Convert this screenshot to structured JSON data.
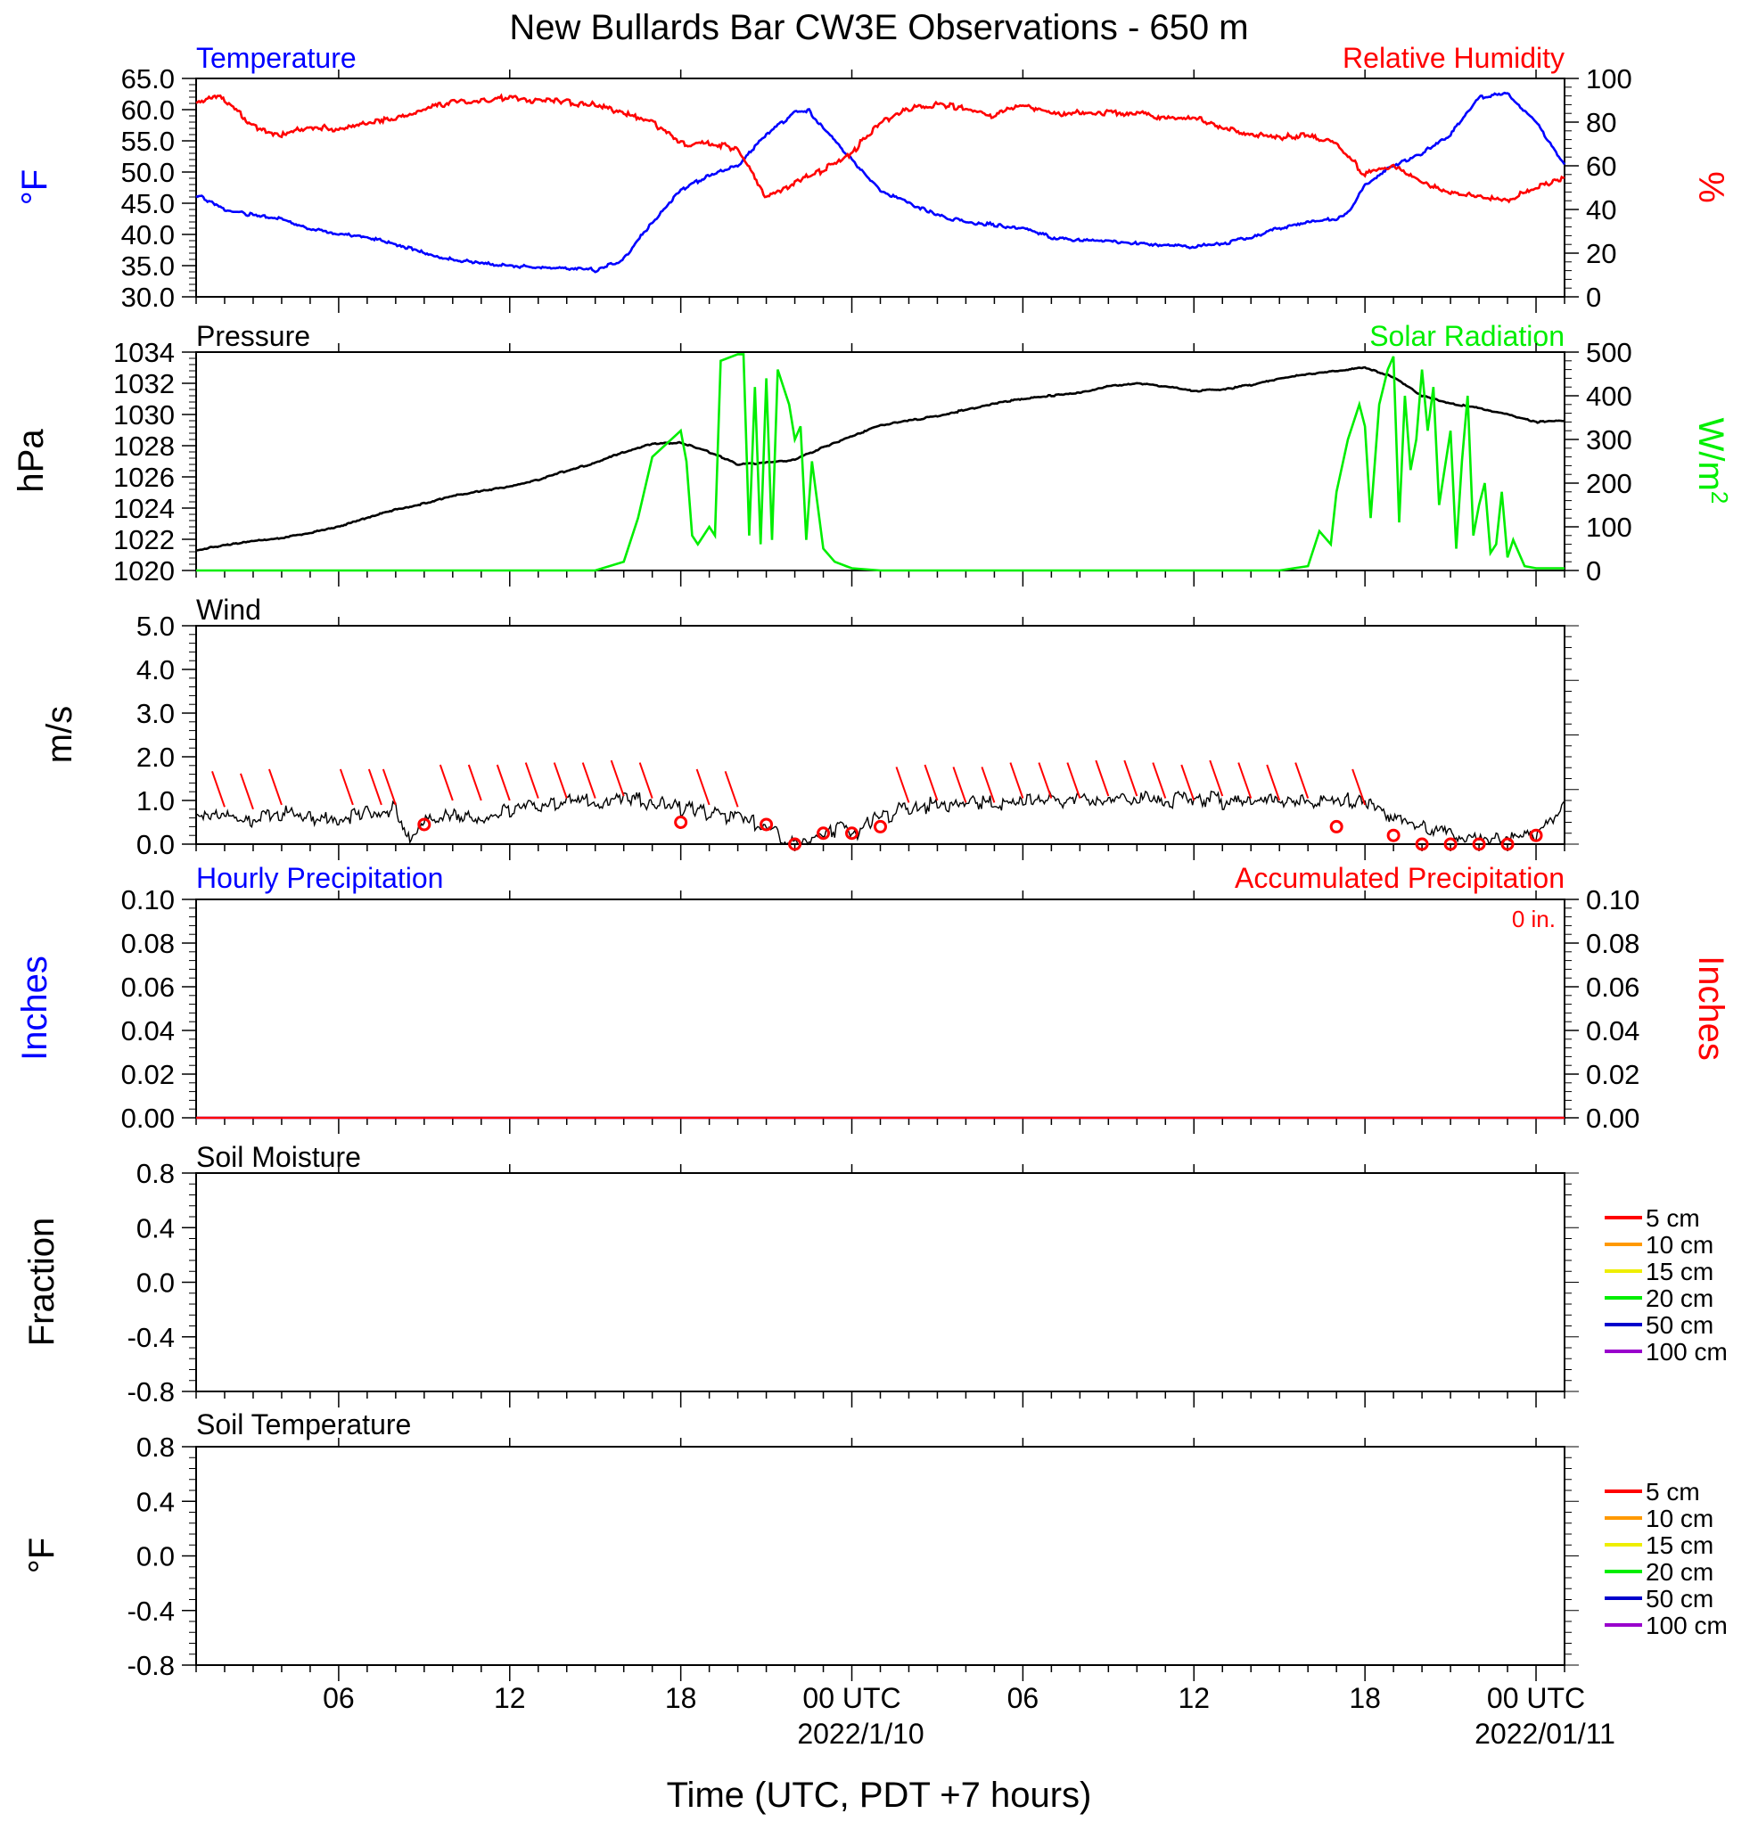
{
  "title": "New Bullards Bar CW3E Observations - 650 m",
  "colors": {
    "temperature": "#0000ff",
    "humidity": "#ff0000",
    "pressure": "#000000",
    "solar": "#00ee00",
    "wind": "#000000",
    "barb": "#ff0000",
    "hourly_precip": "#0000ff",
    "accum_precip": "#ff0000"
  },
  "x_axis": {
    "label": "Time (UTC, PDT +7 hours)",
    "range_hours": [
      0,
      48
    ],
    "ticks": [
      {
        "h": 5,
        "label": "06",
        "sub": ""
      },
      {
        "h": 11,
        "label": "12",
        "sub": ""
      },
      {
        "h": 17,
        "label": "18",
        "sub": ""
      },
      {
        "h": 23,
        "label": "00 UTC",
        "sub": "2022/1/10"
      },
      {
        "h": 29,
        "label": "06",
        "sub": ""
      },
      {
        "h": 35,
        "label": "12",
        "sub": ""
      },
      {
        "h": 41,
        "label": "18",
        "sub": ""
      },
      {
        "h": 47,
        "label": "00 UTC",
        "sub": "2022/01/11"
      }
    ]
  },
  "chart_data": [
    {
      "type": "line",
      "panel": "temperature-humidity",
      "title_left": "Temperature",
      "title_right": "Relative Humidity",
      "ylabel_left": "°F",
      "ylabel_right": "%",
      "ylim_left": [
        30,
        65
      ],
      "ylim_right": [
        0,
        100
      ],
      "yticks_left": [
        "65.0",
        "60.0",
        "55.0",
        "50.0",
        "45.0",
        "40.0",
        "35.0",
        "30.0"
      ],
      "yticks_right": [
        "100",
        "80",
        "60",
        "40",
        "20",
        "0"
      ],
      "series": [
        {
          "name": "Temperature",
          "axis": "left",
          "x": [
            0,
            1,
            2,
            3,
            4,
            5,
            6,
            7,
            8,
            9,
            10,
            11,
            12,
            13,
            14,
            15,
            16,
            17,
            18,
            19,
            20,
            21,
            21.5,
            22,
            23,
            24,
            25,
            26,
            27,
            28,
            29,
            30,
            31,
            32,
            33,
            34,
            35,
            36,
            37,
            38,
            39,
            40,
            40.5,
            41,
            42,
            43,
            44,
            45,
            46,
            47,
            48
          ],
          "y": [
            46.5,
            44,
            43,
            42.5,
            41,
            40,
            39.5,
            38.5,
            37,
            36,
            35.5,
            35,
            34.8,
            34.5,
            34.3,
            36,
            42,
            47,
            49.5,
            51,
            56,
            59.5,
            59.8,
            57,
            52,
            47,
            45,
            43,
            42,
            41.5,
            41,
            39.5,
            39,
            39,
            38.5,
            38.3,
            38,
            38.5,
            39.5,
            41,
            42,
            42.5,
            44,
            48,
            51,
            53,
            56,
            62,
            62.5,
            58,
            51
          ]
        },
        {
          "name": "Relative Humidity",
          "axis": "right",
          "x": [
            0,
            0.5,
            1,
            2,
            3,
            4,
            5,
            6,
            7,
            8,
            9,
            10,
            11,
            12,
            13,
            14,
            15,
            16,
            17,
            18,
            19,
            20,
            21,
            22,
            23,
            24,
            25,
            26,
            27,
            28,
            29,
            30,
            31,
            32,
            33,
            34,
            35,
            36,
            37,
            38,
            39,
            40,
            41,
            42,
            43,
            44,
            45,
            46,
            47,
            48
          ],
          "y": [
            88,
            92,
            90,
            78,
            74,
            78,
            77,
            80,
            82,
            86,
            89,
            90,
            91,
            90,
            89,
            88,
            84,
            80,
            70,
            70,
            68,
            45,
            52,
            58,
            66,
            80,
            86,
            88,
            86,
            83,
            88,
            84,
            84,
            84,
            84,
            82,
            82,
            78,
            74,
            73,
            74,
            70,
            56,
            60,
            52,
            47,
            46,
            44,
            50,
            55
          ]
        }
      ]
    },
    {
      "type": "line",
      "panel": "pressure-solar",
      "title_left": "Pressure",
      "title_right": "Solar Radiation",
      "ylabel_left": "hPa",
      "ylabel_right": "W/m2",
      "ylim_left": [
        1020,
        1034
      ],
      "ylim_right": [
        0,
        500
      ],
      "yticks_left": [
        "1034",
        "1032",
        "1030",
        "1028",
        "1026",
        "1024",
        "1022",
        "1020"
      ],
      "yticks_right": [
        "500",
        "400",
        "300",
        "200",
        "100",
        "0"
      ],
      "series": [
        {
          "name": "Pressure",
          "axis": "left",
          "x": [
            0,
            1,
            2,
            3,
            4,
            5,
            6,
            7,
            8,
            9,
            10,
            11,
            12,
            13,
            14,
            15,
            16,
            17,
            18,
            19,
            20,
            21,
            22,
            23,
            24,
            25,
            26,
            27,
            28,
            29,
            30,
            31,
            32,
            33,
            34,
            35,
            36,
            37,
            38,
            39,
            40,
            41,
            42,
            43,
            44,
            45,
            46,
            47,
            48
          ],
          "y": [
            1021.3,
            1021.6,
            1021.9,
            1022.1,
            1022.4,
            1022.8,
            1023.4,
            1023.9,
            1024.3,
            1024.8,
            1025.1,
            1025.4,
            1025.8,
            1026.4,
            1026.9,
            1027.6,
            1028.1,
            1028.2,
            1027.6,
            1026.8,
            1026.9,
            1027.1,
            1027.9,
            1028.6,
            1029.3,
            1029.6,
            1029.9,
            1030.3,
            1030.7,
            1031.0,
            1031.2,
            1031.4,
            1031.8,
            1032.0,
            1031.8,
            1031.5,
            1031.6,
            1031.9,
            1032.3,
            1032.6,
            1032.8,
            1033.0,
            1032.4,
            1031.2,
            1030.7,
            1030.4,
            1030.0,
            1029.5,
            1029.6
          ]
        },
        {
          "name": "Solar Radiation",
          "axis": "right",
          "x": [
            0,
            14,
            15,
            15.5,
            16,
            17,
            17.2,
            17.4,
            17.6,
            18,
            18.2,
            18.4,
            19,
            19.2,
            19.4,
            19.6,
            19.8,
            20,
            20.2,
            20.4,
            20.8,
            21,
            21.2,
            21.4,
            21.6,
            22,
            22.4,
            22.8,
            23,
            24,
            38,
            39,
            39.4,
            39.8,
            40,
            40.4,
            40.8,
            41,
            41.2,
            41.5,
            41.8,
            42,
            42.2,
            42.4,
            42.6,
            42.8,
            43,
            43.2,
            43.4,
            43.6,
            44,
            44.2,
            44.4,
            44.6,
            44.8,
            45,
            45.2,
            45.4,
            45.6,
            45.8,
            46,
            46.2,
            46.6,
            47,
            48
          ],
          "y": [
            0,
            0,
            20,
            120,
            260,
            320,
            250,
            80,
            60,
            100,
            80,
            480,
            495,
            495,
            80,
            420,
            60,
            440,
            70,
            460,
            380,
            300,
            330,
            70,
            250,
            50,
            20,
            10,
            5,
            0,
            0,
            10,
            90,
            60,
            180,
            300,
            380,
            330,
            120,
            380,
            460,
            490,
            110,
            400,
            230,
            300,
            460,
            320,
            420,
            150,
            320,
            50,
            250,
            400,
            80,
            150,
            200,
            40,
            60,
            180,
            30,
            70,
            10,
            5,
            5
          ]
        }
      ]
    },
    {
      "type": "line",
      "panel": "wind",
      "title_left": "Wind",
      "ylabel_left": "m/s",
      "ylim_left": [
        0,
        5
      ],
      "yticks_left": [
        "5.0",
        "4.0",
        "3.0",
        "2.0",
        "1.0",
        "0.0"
      ],
      "series": [
        {
          "name": "Wind",
          "x": [
            0,
            1,
            2,
            3,
            4,
            5,
            6,
            7,
            7.5,
            8,
            9,
            10,
            11,
            12,
            13,
            14,
            15,
            16,
            17,
            18,
            19,
            20,
            20.5,
            21,
            21.5,
            22,
            22.5,
            23,
            24,
            25,
            26,
            27,
            28,
            29,
            30,
            31,
            32,
            33,
            34,
            35,
            36,
            37,
            38,
            39,
            40,
            41,
            42,
            42.5,
            43,
            44,
            45,
            46,
            47,
            48
          ],
          "y": [
            0.6,
            0.7,
            0.6,
            0.7,
            0.55,
            0.6,
            0.7,
            0.85,
            0.1,
            0.6,
            0.7,
            0.6,
            0.75,
            0.9,
            1.0,
            0.95,
            1.0,
            0.95,
            0.85,
            0.7,
            0.6,
            0.4,
            0.1,
            0.0,
            0.1,
            0.2,
            0.4,
            0.2,
            0.6,
            0.85,
            0.9,
            0.95,
            0.9,
            0.95,
            1.05,
            1.0,
            1.0,
            1.05,
            0.95,
            1.05,
            1.0,
            1.0,
            1.05,
            1.0,
            0.95,
            1.0,
            0.6,
            0.5,
            0.4,
            0.2,
            0.1,
            0.05,
            0.2,
            0.9
          ]
        }
      ]
    },
    {
      "type": "line",
      "panel": "precipitation",
      "title_left": "Hourly Precipitation",
      "title_right": "Accumulated Precipitation",
      "annotation": "0 in.",
      "ylabel_left": "Inches",
      "ylabel_right": "Inches",
      "ylim_left": [
        0,
        0.1
      ],
      "ylim_right": [
        0,
        0.1
      ],
      "yticks_left": [
        "0.10",
        "0.08",
        "0.06",
        "0.04",
        "0.02",
        "0.00"
      ],
      "yticks_right": [
        "0.10",
        "0.08",
        "0.06",
        "0.04",
        "0.02",
        "0.00"
      ],
      "series": [
        {
          "name": "Hourly Precipitation",
          "x": [
            0,
            48
          ],
          "y": [
            0,
            0
          ]
        },
        {
          "name": "Accumulated Precipitation",
          "x": [
            0,
            48
          ],
          "y": [
            0,
            0
          ]
        }
      ]
    },
    {
      "type": "line",
      "panel": "soil-moisture",
      "title_left": "Soil Moisture",
      "ylabel_left": "Fraction",
      "ylim_left": [
        -1,
        1
      ],
      "yticks_left": [
        "0.8",
        "0.4",
        "0.0",
        "-0.4",
        "-0.8"
      ],
      "legend": [
        {
          "label": "5 cm",
          "color": "#ff0000"
        },
        {
          "label": "10 cm",
          "color": "#ff9900"
        },
        {
          "label": "15 cm",
          "color": "#eeee00"
        },
        {
          "label": "20 cm",
          "color": "#00ee00"
        },
        {
          "label": "50 cm",
          "color": "#0000cc"
        },
        {
          "label": "100 cm",
          "color": "#9900cc"
        }
      ],
      "series": []
    },
    {
      "type": "line",
      "panel": "soil-temperature",
      "title_left": "Soil Temperature",
      "ylabel_left": "°F",
      "ylim_left": [
        -1,
        1
      ],
      "yticks_left": [
        "0.8",
        "0.4",
        "0.0",
        "-0.4",
        "-0.8"
      ],
      "legend": [
        {
          "label": "5 cm",
          "color": "#ff0000"
        },
        {
          "label": "10 cm",
          "color": "#ff9900"
        },
        {
          "label": "15 cm",
          "color": "#eeee00"
        },
        {
          "label": "20 cm",
          "color": "#00ee00"
        },
        {
          "label": "50 cm",
          "color": "#0000cc"
        },
        {
          "label": "100 cm",
          "color": "#9900cc"
        }
      ],
      "series": []
    }
  ],
  "wind_barbs": {
    "calm_hours": [
      8,
      17,
      20,
      21,
      22,
      23,
      24,
      40,
      42,
      43,
      44,
      45,
      46,
      47
    ],
    "calm_speeds": [
      0.45,
      0.5,
      0.45,
      0.0,
      0.25,
      0.25,
      0.4,
      0.4,
      0.2,
      0.0,
      0.0,
      0.0,
      0.0,
      0.2
    ],
    "barb_hours": [
      1,
      2,
      3,
      5.5,
      6.5,
      7,
      9,
      10,
      11,
      12,
      13,
      14,
      15,
      16,
      18,
      19,
      25,
      26,
      27,
      28,
      29,
      30,
      31,
      32,
      33,
      34,
      35,
      36,
      37,
      38,
      39,
      41
    ],
    "barb_speeds": [
      0.85,
      0.8,
      0.9,
      0.9,
      0.9,
      0.9,
      1.0,
      1.0,
      1.0,
      1.05,
      1.05,
      1.05,
      1.1,
      1.05,
      0.9,
      0.85,
      0.95,
      1.0,
      0.95,
      0.95,
      1.05,
      1.05,
      1.05,
      1.1,
      1.1,
      1.05,
      1.0,
      1.1,
      1.05,
      1.0,
      1.05,
      0.9
    ]
  }
}
